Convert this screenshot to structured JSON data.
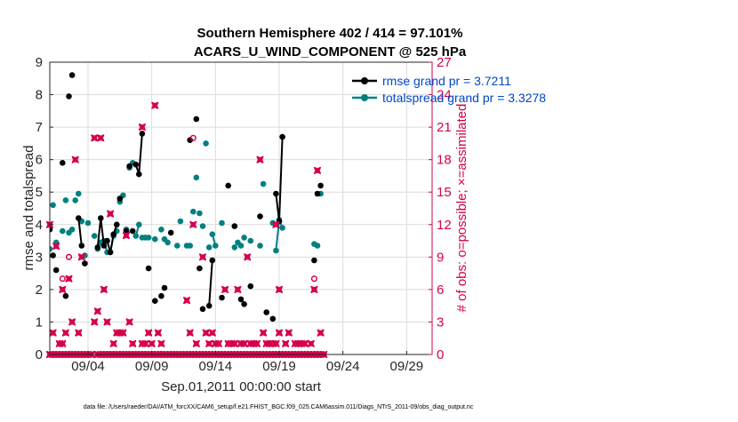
{
  "chart_data": {
    "type": "line",
    "title": "Southern Hemisphere 402 / 414 = 97.101%",
    "subtitle": "ACARS_U_WIND_COMPONENT @ 525 hPa",
    "xlabel": "Sep.01,2011 00:00:00 start",
    "ylabel": "rmse and totalspread",
    "ylabel_right": "# of obs: o=possible; ×=assimilated",
    "footnote": "data file: /Users/raeder/DAI/ATM_forcXX/CAM6_setup/f.e21.FHIST_BGC.f09_025.CAM6assim.011/Diags_NTrS_2011-09/obs_diag_output.nc",
    "xlim": [
      1,
      31
    ],
    "ylim": [
      0,
      9
    ],
    "ylim_right": [
      0,
      27
    ],
    "x_ticks": [
      {
        "x": 4,
        "label": "09/04"
      },
      {
        "x": 9,
        "label": "09/09"
      },
      {
        "x": 14,
        "label": "09/14"
      },
      {
        "x": 19,
        "label": "09/19"
      },
      {
        "x": 24,
        "label": "09/24"
      },
      {
        "x": 29,
        "label": "09/29"
      }
    ],
    "y_ticks": [
      "0",
      "1",
      "2",
      "3",
      "4",
      "5",
      "6",
      "7",
      "8",
      "9"
    ],
    "y_ticks_right": [
      "0",
      "3",
      "6",
      "9",
      "12",
      "15",
      "18",
      "21",
      "24",
      "27"
    ],
    "grid": true,
    "legend_position": "top-right",
    "colors": {
      "rmse": "#000000",
      "spread": "#008080",
      "obs": "#d6004d"
    },
    "series": [
      {
        "name": "rmse grand pr = 3.7211",
        "points": [
          [
            1.0,
            3.85
          ],
          [
            1.25,
            3.05
          ],
          [
            1.5,
            2.6
          ],
          [
            2.0,
            5.9
          ],
          [
            2.25,
            1.8
          ],
          [
            2.5,
            7.95
          ],
          [
            2.75,
            8.6
          ],
          [
            3.25,
            4.2
          ],
          [
            3.5,
            3.35
          ],
          [
            3.75,
            2.8
          ],
          [
            4.75,
            3.3
          ],
          [
            5.0,
            4.2
          ],
          [
            5.25,
            3.35
          ],
          [
            5.5,
            3.5
          ],
          [
            5.75,
            3.15
          ],
          [
            6.0,
            3.7
          ],
          [
            6.25,
            4.0
          ],
          [
            6.5,
            4.8
          ],
          [
            7.0,
            3.8
          ],
          [
            7.25,
            5.8
          ],
          [
            7.5,
            3.8
          ],
          [
            7.75,
            5.85
          ],
          [
            8.0,
            5.55
          ],
          [
            8.25,
            6.8
          ],
          [
            8.75,
            2.65
          ],
          [
            9.25,
            1.65
          ],
          [
            9.75,
            1.8
          ],
          [
            10.0,
            2.05
          ],
          [
            10.5,
            3.75
          ],
          [
            12.0,
            6.6
          ],
          [
            12.5,
            7.25
          ],
          [
            12.75,
            2.65
          ],
          [
            13.0,
            1.4
          ],
          [
            13.5,
            1.5
          ],
          [
            13.75,
            2.9
          ],
          [
            14.5,
            1.75
          ],
          [
            15.0,
            5.2
          ],
          [
            15.5,
            3.95
          ],
          [
            16.0,
            1.7
          ],
          [
            16.25,
            1.55
          ],
          [
            16.75,
            2.1
          ],
          [
            17.5,
            4.25
          ],
          [
            18.0,
            1.3
          ],
          [
            18.5,
            1.1
          ],
          [
            18.75,
            4.95
          ],
          [
            19.0,
            4.1
          ],
          [
            19.25,
            6.7
          ],
          [
            21.75,
            2.9
          ],
          [
            22.0,
            4.95
          ],
          [
            22.25,
            5.2
          ]
        ],
        "segments": [
          [
            3.25,
            3.5
          ],
          [
            4.75,
            5.25
          ],
          [
            5.5,
            6.25
          ],
          [
            7.75,
            8.25
          ],
          [
            13.5,
            13.75
          ],
          [
            18.75,
            19.25
          ]
        ]
      },
      {
        "name": "totalspread grand pr = 3.3278",
        "points": [
          [
            1.0,
            3.25
          ],
          [
            1.25,
            4.6
          ],
          [
            1.5,
            3.45
          ],
          [
            2.0,
            3.8
          ],
          [
            2.25,
            4.75
          ],
          [
            2.5,
            3.75
          ],
          [
            2.75,
            3.85
          ],
          [
            3.0,
            4.75
          ],
          [
            3.25,
            4.95
          ],
          [
            3.5,
            4.1
          ],
          [
            3.75,
            3.05
          ],
          [
            4.0,
            4.05
          ],
          [
            4.5,
            3.65
          ],
          [
            4.75,
            3.25
          ],
          [
            5.0,
            3.45
          ],
          [
            5.25,
            3.5
          ],
          [
            5.5,
            3.15
          ],
          [
            5.75,
            3.15
          ],
          [
            6.0,
            3.65
          ],
          [
            6.25,
            3.8
          ],
          [
            6.5,
            4.7
          ],
          [
            6.75,
            4.9
          ],
          [
            7.0,
            3.85
          ],
          [
            7.25,
            5.75
          ],
          [
            7.5,
            5.9
          ],
          [
            7.75,
            3.65
          ],
          [
            8.0,
            4.0
          ],
          [
            8.25,
            3.6
          ],
          [
            8.5,
            3.6
          ],
          [
            8.75,
            3.6
          ],
          [
            9.25,
            3.55
          ],
          [
            9.75,
            3.85
          ],
          [
            10.0,
            3.55
          ],
          [
            10.25,
            3.45
          ],
          [
            11.0,
            3.35
          ],
          [
            11.25,
            4.1
          ],
          [
            11.75,
            3.35
          ],
          [
            12.0,
            3.35
          ],
          [
            12.25,
            4.4
          ],
          [
            12.5,
            5.45
          ],
          [
            12.75,
            4.35
          ],
          [
            13.0,
            3.95
          ],
          [
            13.25,
            6.5
          ],
          [
            13.5,
            3.3
          ],
          [
            13.75,
            3.7
          ],
          [
            14.0,
            3.35
          ],
          [
            14.5,
            4.05
          ],
          [
            15.5,
            3.3
          ],
          [
            15.75,
            3.45
          ],
          [
            16.0,
            3.35
          ],
          [
            16.25,
            3.6
          ],
          [
            16.75,
            3.5
          ],
          [
            17.5,
            3.35
          ],
          [
            17.75,
            5.25
          ],
          [
            18.5,
            4.05
          ],
          [
            18.75,
            3.2
          ],
          [
            19.0,
            4.15
          ],
          [
            19.25,
            3.9
          ],
          [
            21.75,
            3.4
          ],
          [
            22.0,
            3.35
          ],
          [
            22.25,
            4.95
          ]
        ],
        "segments": [
          [
            5.25,
            5.5
          ],
          [
            5.75,
            6.0
          ],
          [
            7.75,
            8.0
          ],
          [
            13.75,
            14.0
          ],
          [
            18.75,
            19.25
          ]
        ]
      },
      {
        "name": "# of obs assimilated",
        "axis": "right",
        "points": [
          [
            1.0,
            12
          ],
          [
            1.0,
            0
          ],
          [
            1.25,
            2
          ],
          [
            1.25,
            0
          ],
          [
            1.5,
            10
          ],
          [
            1.5,
            0
          ],
          [
            1.75,
            1
          ],
          [
            1.75,
            0
          ],
          [
            2.0,
            1
          ],
          [
            2.0,
            6
          ],
          [
            2.0,
            0
          ],
          [
            2.25,
            2
          ],
          [
            2.25,
            0
          ],
          [
            2.5,
            7
          ],
          [
            2.5,
            0
          ],
          [
            2.75,
            3
          ],
          [
            2.75,
            0
          ],
          [
            3.0,
            18
          ],
          [
            3.0,
            0
          ],
          [
            3.25,
            2
          ],
          [
            3.25,
            0
          ],
          [
            3.5,
            9
          ],
          [
            3.5,
            0
          ],
          [
            3.75,
            0
          ],
          [
            4.0,
            0
          ],
          [
            4.25,
            0
          ],
          [
            4.5,
            20
          ],
          [
            4.5,
            3
          ],
          [
            4.75,
            4
          ],
          [
            4.75,
            0
          ],
          [
            5.0,
            20
          ],
          [
            5.0,
            0
          ],
          [
            5.25,
            6
          ],
          [
            5.25,
            0
          ],
          [
            5.5,
            3
          ],
          [
            5.5,
            0
          ],
          [
            5.75,
            13
          ],
          [
            5.75,
            0
          ],
          [
            6.0,
            1
          ],
          [
            6.0,
            0
          ],
          [
            6.25,
            2
          ],
          [
            6.25,
            0
          ],
          [
            6.5,
            2
          ],
          [
            6.5,
            0
          ],
          [
            6.75,
            2
          ],
          [
            6.75,
            0
          ],
          [
            7.0,
            11
          ],
          [
            7.0,
            0
          ],
          [
            7.25,
            3
          ],
          [
            7.25,
            0
          ],
          [
            7.5,
            1
          ],
          [
            7.5,
            0
          ],
          [
            7.75,
            0
          ],
          [
            8.0,
            0
          ],
          [
            8.25,
            1
          ],
          [
            8.25,
            21
          ],
          [
            8.25,
            0
          ],
          [
            8.5,
            1
          ],
          [
            8.5,
            0
          ],
          [
            8.75,
            2
          ],
          [
            8.75,
            0
          ],
          [
            9.0,
            1
          ],
          [
            9.0,
            0
          ],
          [
            9.25,
            23
          ],
          [
            9.25,
            0
          ],
          [
            9.5,
            2
          ],
          [
            9.5,
            0
          ],
          [
            9.75,
            1
          ],
          [
            9.75,
            0
          ],
          [
            10.0,
            0
          ],
          [
            10.25,
            0
          ],
          [
            10.5,
            0
          ],
          [
            10.75,
            0
          ],
          [
            11.0,
            0
          ],
          [
            11.25,
            0
          ],
          [
            11.5,
            0
          ],
          [
            11.75,
            5
          ],
          [
            11.75,
            0
          ],
          [
            12.0,
            2
          ],
          [
            12.0,
            0
          ],
          [
            12.25,
            12
          ],
          [
            12.25,
            0
          ],
          [
            12.5,
            1
          ],
          [
            12.5,
            0
          ],
          [
            12.75,
            0
          ],
          [
            13.0,
            9
          ],
          [
            13.0,
            0
          ],
          [
            13.25,
            2
          ],
          [
            13.25,
            0
          ],
          [
            13.5,
            1
          ],
          [
            13.5,
            0
          ],
          [
            13.75,
            2
          ],
          [
            13.75,
            0
          ],
          [
            14.0,
            1
          ],
          [
            14.0,
            0
          ],
          [
            14.25,
            1
          ],
          [
            14.25,
            0
          ],
          [
            14.5,
            0
          ],
          [
            14.75,
            6
          ],
          [
            14.75,
            0
          ],
          [
            15.0,
            1
          ],
          [
            15.0,
            0
          ],
          [
            15.25,
            1
          ],
          [
            15.25,
            0
          ],
          [
            15.5,
            1
          ],
          [
            15.5,
            0
          ],
          [
            15.75,
            6
          ],
          [
            15.75,
            0
          ],
          [
            16.0,
            1
          ],
          [
            16.0,
            0
          ],
          [
            16.25,
            1
          ],
          [
            16.25,
            0
          ],
          [
            16.5,
            9
          ],
          [
            16.5,
            0
          ],
          [
            16.75,
            1
          ],
          [
            16.75,
            0
          ],
          [
            17.0,
            1
          ],
          [
            17.0,
            0
          ],
          [
            17.25,
            1
          ],
          [
            17.25,
            0
          ],
          [
            17.5,
            18
          ],
          [
            17.5,
            0
          ],
          [
            17.75,
            2
          ],
          [
            17.75,
            0
          ],
          [
            18.0,
            1
          ],
          [
            18.0,
            0
          ],
          [
            18.25,
            1
          ],
          [
            18.25,
            0
          ],
          [
            18.5,
            1
          ],
          [
            18.5,
            0
          ],
          [
            18.75,
            1
          ],
          [
            18.75,
            12
          ],
          [
            18.75,
            0
          ],
          [
            19.0,
            2
          ],
          [
            19.0,
            6
          ],
          [
            19.0,
            0
          ],
          [
            19.25,
            0
          ],
          [
            19.5,
            1
          ],
          [
            19.5,
            0
          ],
          [
            19.75,
            2
          ],
          [
            19.75,
            0
          ],
          [
            20.0,
            0
          ],
          [
            20.25,
            1
          ],
          [
            20.25,
            0
          ],
          [
            20.5,
            1
          ],
          [
            20.5,
            0
          ],
          [
            20.75,
            1
          ],
          [
            20.75,
            0
          ],
          [
            21.0,
            1
          ],
          [
            21.0,
            0
          ],
          [
            21.25,
            0
          ],
          [
            21.5,
            1
          ],
          [
            21.5,
            0
          ],
          [
            21.75,
            6
          ],
          [
            21.75,
            0
          ],
          [
            22.0,
            17
          ],
          [
            22.0,
            0
          ],
          [
            22.25,
            2
          ],
          [
            22.25,
            0
          ],
          [
            22.5,
            0
          ]
        ]
      },
      {
        "name": "# of obs possible",
        "axis": "right",
        "points": [
          [
            2.0,
            7
          ],
          [
            2.5,
            9
          ],
          [
            12.25,
            20
          ],
          [
            21.75,
            7
          ]
        ]
      }
    ]
  }
}
